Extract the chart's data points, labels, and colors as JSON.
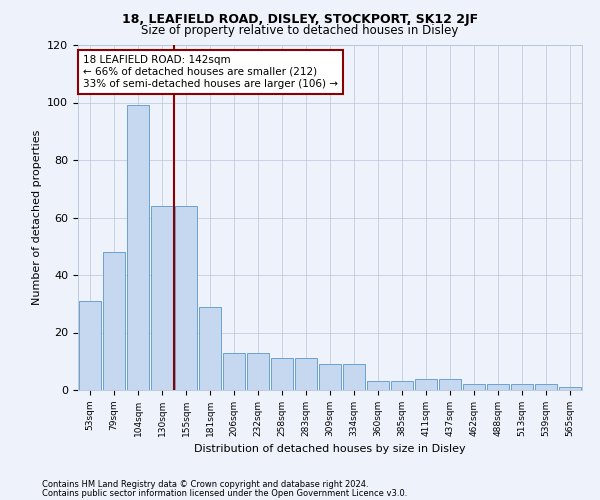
{
  "title1": "18, LEAFIELD ROAD, DISLEY, STOCKPORT, SK12 2JF",
  "title2": "Size of property relative to detached houses in Disley",
  "xlabel": "Distribution of detached houses by size in Disley",
  "ylabel": "Number of detached properties",
  "bins": [
    "53sqm",
    "79sqm",
    "104sqm",
    "130sqm",
    "155sqm",
    "181sqm",
    "206sqm",
    "232sqm",
    "258sqm",
    "283sqm",
    "309sqm",
    "334sqm",
    "360sqm",
    "385sqm",
    "411sqm",
    "437sqm",
    "462sqm",
    "488sqm",
    "513sqm",
    "539sqm",
    "565sqm"
  ],
  "bar_heights": [
    31,
    48,
    99,
    64,
    64,
    29,
    13,
    13,
    11,
    11,
    9,
    9,
    3,
    3,
    4,
    4,
    2,
    2,
    2,
    2,
    1
  ],
  "bar_color": "#C5D8F0",
  "bar_edge_color": "#6AA0D0",
  "vline_x_index": 3.5,
  "vline_color": "#8B0000",
  "annotation_text": "18 LEAFIELD ROAD: 142sqm\n← 66% of detached houses are smaller (212)\n33% of semi-detached houses are larger (106) →",
  "annotation_box_color": "white",
  "annotation_box_edge_color": "#8B0000",
  "ylim": [
    0,
    120
  ],
  "yticks": [
    0,
    20,
    40,
    60,
    80,
    100,
    120
  ],
  "footer1": "Contains HM Land Registry data © Crown copyright and database right 2024.",
  "footer2": "Contains public sector information licensed under the Open Government Licence v3.0.",
  "bg_color": "#EEF2FA",
  "grid_color": "#B8C4DC"
}
